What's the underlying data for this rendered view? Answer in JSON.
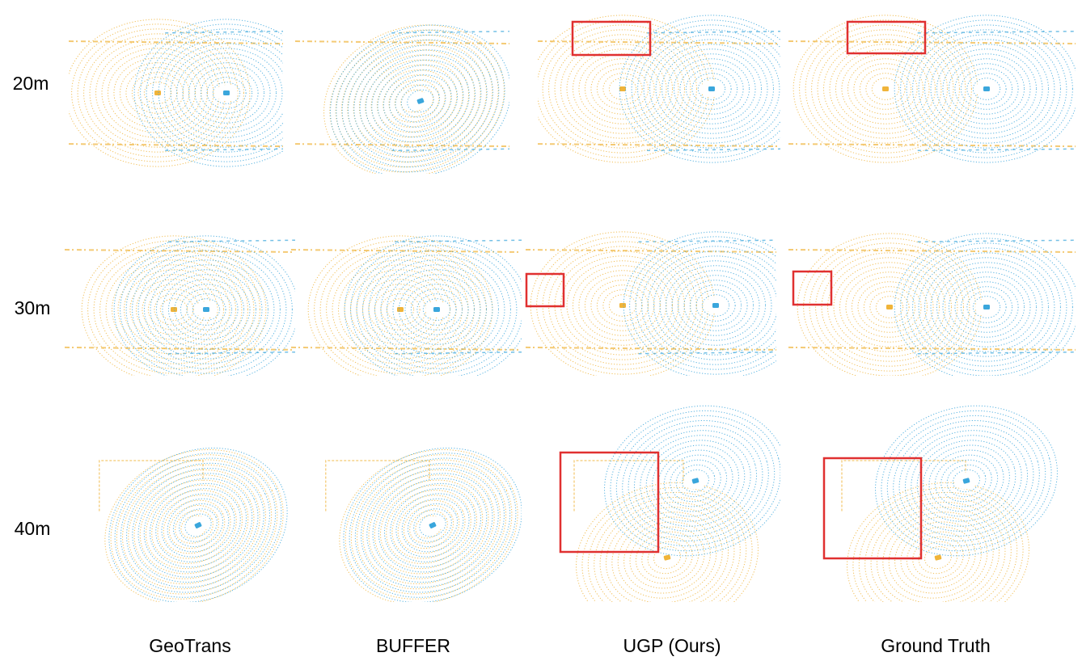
{
  "row_labels": [
    "20m",
    "30m",
    "40m"
  ],
  "column_labels": [
    "GeoTrans",
    "BUFFER",
    "UGP (Ours)",
    "Ground Truth"
  ]
}
